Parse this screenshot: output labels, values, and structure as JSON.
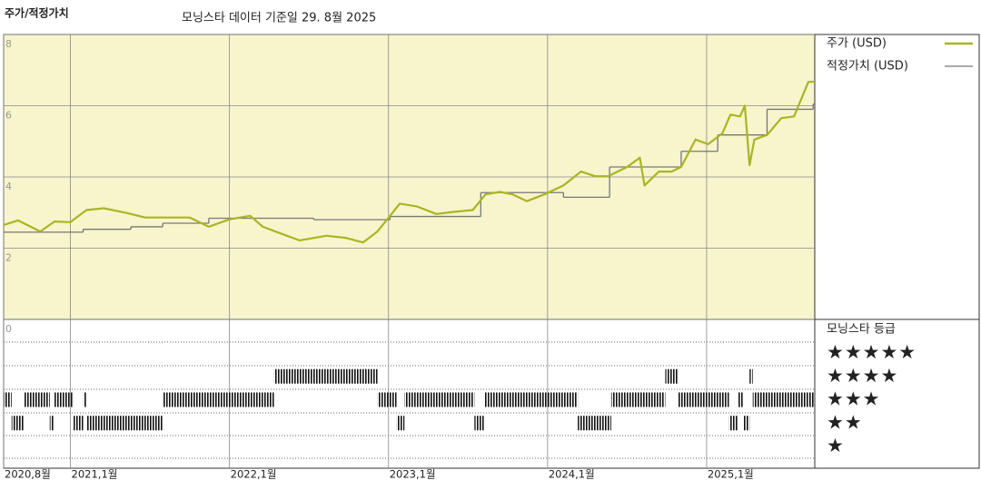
{
  "chart_data": {
    "type": "line",
    "title": "주가/적정가치",
    "subtitle": "모닝스타 데이터 기준일 29. 8월 2025",
    "xlim": [
      2020.58,
      2025.68
    ],
    "xticks": [
      {
        "value": 2020.58,
        "label": "2020,8월"
      },
      {
        "value": 2021.0,
        "label": "2021,1월"
      },
      {
        "value": 2022.0,
        "label": "2022,1월"
      },
      {
        "value": 2023.0,
        "label": "2023,1월"
      },
      {
        "value": 2024.0,
        "label": "2024,1월"
      },
      {
        "value": 2025.0,
        "label": "2025,1월"
      }
    ],
    "ylim": [
      0,
      8
    ],
    "yticks": [
      0,
      2,
      4,
      6,
      8
    ],
    "grid": true,
    "series": [
      {
        "name": "주가 (USD)",
        "color": "#a9b523",
        "x": [
          2020.58,
          2020.67,
          2020.81,
          2020.9,
          2021.0,
          2021.1,
          2021.21,
          2021.35,
          2021.47,
          2021.64,
          2021.75,
          2021.87,
          2022.0,
          2022.13,
          2022.21,
          2022.33,
          2022.44,
          2022.61,
          2022.73,
          2022.84,
          2022.93,
          2023.01,
          2023.07,
          2023.18,
          2023.3,
          2023.41,
          2023.53,
          2023.61,
          2023.7,
          2023.78,
          2023.87,
          2023.98,
          2024.1,
          2024.21,
          2024.3,
          2024.38,
          2024.5,
          2024.58,
          2024.61,
          2024.7,
          2024.78,
          2024.84,
          2024.93,
          2025.01,
          2025.1,
          2025.15,
          2025.21,
          2025.24,
          2025.27,
          2025.3,
          2025.38,
          2025.47,
          2025.55,
          2025.59,
          2025.64,
          2025.68
        ],
        "values": [
          2.65,
          2.78,
          2.47,
          2.75,
          2.73,
          3.07,
          3.12,
          2.99,
          2.86,
          2.86,
          2.86,
          2.6,
          2.81,
          2.91,
          2.6,
          2.4,
          2.22,
          2.35,
          2.29,
          2.16,
          2.47,
          2.91,
          3.25,
          3.17,
          2.96,
          3.02,
          3.07,
          3.51,
          3.58,
          3.51,
          3.32,
          3.51,
          3.76,
          4.15,
          4.02,
          4.02,
          4.28,
          4.54,
          3.76,
          4.15,
          4.15,
          4.28,
          5.05,
          4.92,
          5.23,
          5.75,
          5.7,
          6.0,
          4.33,
          5.05,
          5.18,
          5.65,
          5.7,
          6.13,
          6.67,
          6.67
        ]
      },
      {
        "name": "적정가치 (USD)",
        "color": "#777777",
        "step": "post",
        "x": [
          2020.58,
          2021.08,
          2021.38,
          2021.58,
          2021.87,
          2022.53,
          2023.01,
          2023.58,
          2024.1,
          2024.39,
          2024.84,
          2025.07,
          2025.38,
          2025.67
        ],
        "values": [
          2.45,
          2.53,
          2.6,
          2.7,
          2.84,
          2.8,
          2.89,
          3.56,
          3.43,
          4.28,
          4.72,
          5.18,
          5.9,
          6.05
        ]
      }
    ],
    "ratings": {
      "title": "모닝스타 등급",
      "levels": [
        {
          "value": 5,
          "label": "★★★★★"
        },
        {
          "value": 4,
          "label": "★★★★"
        },
        {
          "value": 3,
          "label": "★★★"
        },
        {
          "value": 2,
          "label": "★★"
        },
        {
          "value": 1,
          "label": "★"
        }
      ],
      "periods": [
        {
          "start": 2020.58,
          "end": 2020.63,
          "rating": 3
        },
        {
          "start": 2020.63,
          "end": 2020.71,
          "rating": 2
        },
        {
          "start": 2020.71,
          "end": 2020.87,
          "rating": 3
        },
        {
          "start": 2020.87,
          "end": 2020.9,
          "rating": 2
        },
        {
          "start": 2020.9,
          "end": 2021.02,
          "rating": 3
        },
        {
          "start": 2021.02,
          "end": 2021.08,
          "rating": 2
        },
        {
          "start": 2021.08,
          "end": 2021.1,
          "rating": 3
        },
        {
          "start": 2021.1,
          "end": 2021.58,
          "rating": 2
        },
        {
          "start": 2021.58,
          "end": 2022.28,
          "rating": 3
        },
        {
          "start": 2022.28,
          "end": 2022.93,
          "rating": 4
        },
        {
          "start": 2022.93,
          "end": 2023.05,
          "rating": 3
        },
        {
          "start": 2023.05,
          "end": 2023.1,
          "rating": 2
        },
        {
          "start": 2023.1,
          "end": 2023.54,
          "rating": 3
        },
        {
          "start": 2023.54,
          "end": 2023.6,
          "rating": 2
        },
        {
          "start": 2023.6,
          "end": 2024.19,
          "rating": 3
        },
        {
          "start": 2024.19,
          "end": 2024.4,
          "rating": 2
        },
        {
          "start": 2024.4,
          "end": 2024.74,
          "rating": 3
        },
        {
          "start": 2024.74,
          "end": 2024.82,
          "rating": 4
        },
        {
          "start": 2024.82,
          "end": 2025.14,
          "rating": 3
        },
        {
          "start": 2025.14,
          "end": 2025.2,
          "rating": 2
        },
        {
          "start": 2025.2,
          "end": 2025.23,
          "rating": 3
        },
        {
          "start": 2025.23,
          "end": 2025.27,
          "rating": 2
        },
        {
          "start": 2025.27,
          "end": 2025.29,
          "rating": 4
        },
        {
          "start": 2025.29,
          "end": 2025.68,
          "rating": 3
        }
      ]
    }
  }
}
